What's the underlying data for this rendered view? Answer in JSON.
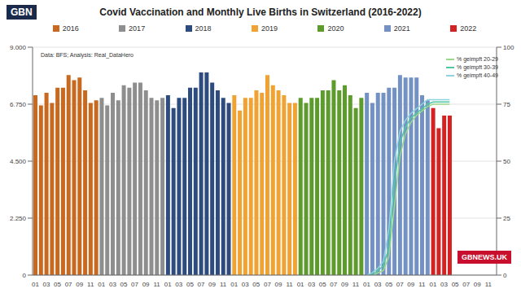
{
  "chart_data": {
    "type": "bar",
    "title": "Covid Vaccination and Monthly Live Births in Switzerland (2016-2022)",
    "annotations": [
      "Data: BFS; Analysis: Real_DataHero",
      "GBN",
      "GBNEWS.UK"
    ],
    "categories": [
      "01",
      null,
      "03",
      null,
      "05",
      null,
      "07",
      null,
      "09",
      null,
      "11",
      null,
      "01",
      null,
      "03",
      null,
      "05",
      null,
      "07",
      null,
      "09",
      null,
      "11",
      null,
      "01",
      null,
      "03",
      null,
      "05",
      null,
      "07",
      null,
      "09",
      null,
      "11",
      null,
      "01",
      null,
      "03",
      null,
      "05",
      null,
      "07",
      null,
      "09",
      null,
      "11",
      null,
      "01",
      null,
      "03",
      null,
      "05",
      null,
      "07",
      null,
      "09",
      null,
      "11",
      null,
      "01",
      null,
      "03",
      null,
      "05",
      null,
      "07",
      null,
      "09",
      null,
      "11",
      null,
      "01",
      null,
      "03",
      null,
      "05",
      null,
      "07",
      null,
      "09",
      null,
      "11",
      null
    ],
    "series": [
      {
        "name": "2016",
        "type": "bar",
        "color": "#c9681f",
        "values": [
          7100,
          6700,
          7200,
          6800,
          7400,
          7400,
          7900,
          7700,
          7800,
          7300,
          6800,
          6900,
          null,
          null,
          null,
          null,
          null,
          null,
          null,
          null,
          null,
          null,
          null,
          null,
          null,
          null,
          null,
          null,
          null,
          null,
          null,
          null,
          null,
          null,
          null,
          null,
          null,
          null,
          null,
          null,
          null,
          null,
          null,
          null,
          null,
          null,
          null,
          null,
          null,
          null,
          null,
          null,
          null,
          null,
          null,
          null,
          null,
          null,
          null,
          null,
          null,
          null,
          null,
          null,
          null,
          null,
          null,
          null,
          null,
          null,
          null,
          null,
          null,
          null,
          null,
          null,
          null,
          null,
          null,
          null,
          null,
          null,
          null,
          null
        ]
      },
      {
        "name": "2017",
        "type": "bar",
        "color": "#8e8e8e",
        "values": [
          null,
          null,
          null,
          null,
          null,
          null,
          null,
          null,
          null,
          null,
          null,
          null,
          7000,
          6700,
          7200,
          6900,
          7500,
          7400,
          7600,
          7600,
          7300,
          7000,
          6900,
          7000,
          null,
          null,
          null,
          null,
          null,
          null,
          null,
          null,
          null,
          null,
          null,
          null,
          null,
          null,
          null,
          null,
          null,
          null,
          null,
          null,
          null,
          null,
          null,
          null,
          null,
          null,
          null,
          null,
          null,
          null,
          null,
          null,
          null,
          null,
          null,
          null,
          null,
          null,
          null,
          null,
          null,
          null,
          null,
          null,
          null,
          null,
          null,
          null,
          null,
          null,
          null,
          null,
          null,
          null,
          null,
          null,
          null,
          null,
          null,
          null
        ]
      },
      {
        "name": "2018",
        "type": "bar",
        "color": "#2d4b7e",
        "values": [
          null,
          null,
          null,
          null,
          null,
          null,
          null,
          null,
          null,
          null,
          null,
          null,
          null,
          null,
          null,
          null,
          null,
          null,
          null,
          null,
          null,
          null,
          null,
          null,
          7100,
          6600,
          7000,
          7000,
          7400,
          7400,
          8000,
          8000,
          7600,
          7300,
          7000,
          6800,
          null,
          null,
          null,
          null,
          null,
          null,
          null,
          null,
          null,
          null,
          null,
          null,
          null,
          null,
          null,
          null,
          null,
          null,
          null,
          null,
          null,
          null,
          null,
          null,
          null,
          null,
          null,
          null,
          null,
          null,
          null,
          null,
          null,
          null,
          null,
          null,
          null,
          null,
          null,
          null,
          null,
          null,
          null,
          null,
          null,
          null,
          null,
          null
        ]
      },
      {
        "name": "2019",
        "type": "bar",
        "color": "#f0a232",
        "values": [
          null,
          null,
          null,
          null,
          null,
          null,
          null,
          null,
          null,
          null,
          null,
          null,
          null,
          null,
          null,
          null,
          null,
          null,
          null,
          null,
          null,
          null,
          null,
          null,
          null,
          null,
          null,
          null,
          null,
          null,
          null,
          null,
          null,
          null,
          null,
          null,
          7100,
          6500,
          7000,
          7000,
          7300,
          7200,
          7900,
          7500,
          7300,
          7100,
          6800,
          6800,
          null,
          null,
          null,
          null,
          null,
          null,
          null,
          null,
          null,
          null,
          null,
          null,
          null,
          null,
          null,
          null,
          null,
          null,
          null,
          null,
          null,
          null,
          null,
          null,
          null,
          null,
          null,
          null,
          null,
          null,
          null,
          null,
          null,
          null,
          null,
          null
        ]
      },
      {
        "name": "2020",
        "type": "bar",
        "color": "#5c9b2c",
        "values": [
          null,
          null,
          null,
          null,
          null,
          null,
          null,
          null,
          null,
          null,
          null,
          null,
          null,
          null,
          null,
          null,
          null,
          null,
          null,
          null,
          null,
          null,
          null,
          null,
          null,
          null,
          null,
          null,
          null,
          null,
          null,
          null,
          null,
          null,
          null,
          null,
          null,
          null,
          null,
          null,
          null,
          null,
          null,
          null,
          null,
          null,
          null,
          null,
          7000,
          6800,
          7000,
          7000,
          7300,
          7300,
          7700,
          7300,
          7500,
          7100,
          6600,
          7000,
          null,
          null,
          null,
          null,
          null,
          null,
          null,
          null,
          null,
          null,
          null,
          null,
          null,
          null,
          null,
          null,
          null,
          null,
          null,
          null,
          null,
          null,
          null,
          null
        ]
      },
      {
        "name": "2021",
        "type": "bar",
        "color": "#7391c2",
        "values": [
          null,
          null,
          null,
          null,
          null,
          null,
          null,
          null,
          null,
          null,
          null,
          null,
          null,
          null,
          null,
          null,
          null,
          null,
          null,
          null,
          null,
          null,
          null,
          null,
          null,
          null,
          null,
          null,
          null,
          null,
          null,
          null,
          null,
          null,
          null,
          null,
          null,
          null,
          null,
          null,
          null,
          null,
          null,
          null,
          null,
          null,
          null,
          null,
          null,
          null,
          null,
          null,
          null,
          null,
          null,
          null,
          null,
          null,
          null,
          null,
          7200,
          6800,
          7200,
          7200,
          7400,
          7400,
          7900,
          7800,
          7800,
          7800,
          7100,
          6900,
          null,
          null,
          null,
          null,
          null,
          null,
          null,
          null,
          null,
          null,
          null,
          null
        ]
      },
      {
        "name": "2022",
        "type": "bar",
        "color": "#d42222",
        "values": [
          null,
          null,
          null,
          null,
          null,
          null,
          null,
          null,
          null,
          null,
          null,
          null,
          null,
          null,
          null,
          null,
          null,
          null,
          null,
          null,
          null,
          null,
          null,
          null,
          null,
          null,
          null,
          null,
          null,
          null,
          null,
          null,
          null,
          null,
          null,
          null,
          null,
          null,
          null,
          null,
          null,
          null,
          null,
          null,
          null,
          null,
          null,
          null,
          null,
          null,
          null,
          null,
          null,
          null,
          null,
          null,
          null,
          null,
          null,
          null,
          null,
          null,
          null,
          null,
          null,
          null,
          null,
          null,
          null,
          null,
          null,
          null,
          6600,
          5800,
          6300,
          6300,
          null,
          null,
          null,
          null,
          null,
          null,
          null,
          null
        ]
      },
      {
        "name": "% geimpft 20-29",
        "type": "line",
        "axis": "y2",
        "color": "#9ad98a",
        "values": [
          null,
          null,
          null,
          null,
          null,
          null,
          null,
          null,
          null,
          null,
          null,
          null,
          null,
          null,
          null,
          null,
          null,
          null,
          null,
          null,
          null,
          null,
          null,
          null,
          null,
          null,
          null,
          null,
          null,
          null,
          null,
          null,
          null,
          null,
          null,
          null,
          null,
          null,
          null,
          null,
          null,
          null,
          null,
          null,
          null,
          null,
          null,
          null,
          null,
          null,
          null,
          null,
          null,
          null,
          null,
          null,
          null,
          null,
          null,
          null,
          0,
          0,
          1,
          2,
          8,
          30,
          52,
          62,
          67,
          70,
          72,
          74,
          75,
          75,
          75,
          75,
          null,
          null,
          null,
          null,
          null,
          null,
          null,
          null
        ]
      },
      {
        "name": "% geimpft 30-39",
        "type": "line",
        "axis": "y2",
        "color": "#4fc9a4",
        "values": [
          null,
          null,
          null,
          null,
          null,
          null,
          null,
          null,
          null,
          null,
          null,
          null,
          null,
          null,
          null,
          null,
          null,
          null,
          null,
          null,
          null,
          null,
          null,
          null,
          null,
          null,
          null,
          null,
          null,
          null,
          null,
          null,
          null,
          null,
          null,
          null,
          null,
          null,
          null,
          null,
          null,
          null,
          null,
          null,
          null,
          null,
          null,
          null,
          null,
          null,
          null,
          null,
          null,
          null,
          null,
          null,
          null,
          null,
          null,
          null,
          0,
          0,
          2,
          4,
          12,
          40,
          58,
          65,
          69,
          71,
          73,
          75,
          76,
          76,
          76,
          76,
          null,
          null,
          null,
          null,
          null,
          null,
          null,
          null
        ]
      },
      {
        "name": "% geimpft 40-49",
        "type": "line",
        "axis": "y2",
        "color": "#8fd3e0",
        "values": [
          null,
          null,
          null,
          null,
          null,
          null,
          null,
          null,
          null,
          null,
          null,
          null,
          null,
          null,
          null,
          null,
          null,
          null,
          null,
          null,
          null,
          null,
          null,
          null,
          null,
          null,
          null,
          null,
          null,
          null,
          null,
          null,
          null,
          null,
          null,
          null,
          null,
          null,
          null,
          null,
          null,
          null,
          null,
          null,
          null,
          null,
          null,
          null,
          null,
          null,
          null,
          null,
          null,
          null,
          null,
          null,
          null,
          null,
          null,
          null,
          0,
          1,
          3,
          6,
          20,
          50,
          63,
          68,
          71,
          73,
          75,
          77,
          77,
          77,
          77,
          77,
          null,
          null,
          null,
          null,
          null,
          null,
          null,
          null
        ]
      }
    ],
    "ylim": [
      0,
      9000
    ],
    "yticks": [
      0,
      {
        "value": 2250,
        "label": "2.250"
      },
      {
        "value": 4500,
        "label": "4.500"
      },
      {
        "value": 6750,
        "label": "6.750"
      },
      {
        "value": 9000,
        "label": "9.000"
      }
    ],
    "y2lim": [
      0,
      100
    ],
    "y2ticks": [
      0,
      25,
      50,
      75,
      100
    ],
    "grid": true,
    "stacked": true
  }
}
